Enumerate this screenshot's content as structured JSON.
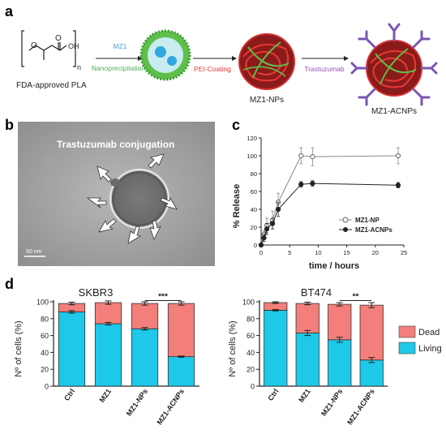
{
  "panels": {
    "a": {
      "letter": "a",
      "pla_label": "FDA-approved PLA",
      "step1_top": "MZ1",
      "step1_bottom": "Nanoprecipitation",
      "step2": "PEI-Coating",
      "np_label": "MZ1-NPs",
      "step3": "Trastuzumab",
      "acnp_label": "MZ1-ACNPs",
      "colors": {
        "mz1": "#3aa6d8",
        "nanoprecip": "#4caf50",
        "pei": "#e53935",
        "trastuzumab": "#9c4fb8",
        "np_red": "#c62828",
        "np_green": "#5fbf4a",
        "antibody": "#7b55b5"
      }
    },
    "b": {
      "letter": "b",
      "title": "Trastuzumab conjugation",
      "scale_bar": "50 nm"
    },
    "c": {
      "letter": "c"
    },
    "d": {
      "letter": "d"
    }
  },
  "chart_data": [
    {
      "type": "line",
      "panel": "c",
      "xlabel": "time / hours",
      "ylabel": "% Release",
      "xlim": [
        0,
        25
      ],
      "ylim": [
        0,
        120
      ],
      "xticks": [
        0,
        5,
        10,
        15,
        20,
        25
      ],
      "yticks": [
        0,
        20,
        40,
        60,
        80,
        100,
        120
      ],
      "legend_position": "bottom-right",
      "series": [
        {
          "name": "MZ1-NP",
          "marker": "open-circle",
          "color": "#888888",
          "x": [
            0,
            0.5,
            1,
            2,
            3,
            7,
            9,
            24
          ],
          "y": [
            0,
            12,
            22,
            28,
            48,
            100,
            99,
            100
          ],
          "err": [
            0,
            4,
            8,
            10,
            10,
            9,
            10,
            9
          ]
        },
        {
          "name": "MZ1-ACNPs",
          "marker": "filled-circle",
          "color": "#222222",
          "x": [
            0,
            0.5,
            1,
            2,
            3,
            7,
            9,
            24
          ],
          "y": [
            0,
            8,
            18,
            24,
            40,
            68,
            69,
            67
          ],
          "err": [
            0,
            4,
            6,
            6,
            8,
            3,
            3,
            3
          ]
        }
      ]
    },
    {
      "type": "bar",
      "stacked": true,
      "panel": "d-left",
      "title": "SKBR3",
      "ylabel": "Nº of cells (%)",
      "ylim": [
        0,
        100
      ],
      "yticks": [
        0,
        20,
        40,
        60,
        80,
        100
      ],
      "categories": [
        "Ctrl",
        "MZ1",
        "MZ1-NPs",
        "MZ1-ACNPs"
      ],
      "series": [
        {
          "name": "Living",
          "color": "#1ec8e8",
          "values": [
            88,
            74,
            68,
            35
          ],
          "err": [
            1.5,
            1.5,
            1.5,
            0.8
          ]
        },
        {
          "name": "Dead",
          "color": "#f27f7a",
          "values": [
            10,
            25,
            30,
            63
          ],
          "err": [
            1.5,
            2,
            2,
            2
          ]
        }
      ],
      "significance": {
        "label": "***",
        "between": [
          "MZ1-NPs",
          "MZ1-ACNPs"
        ]
      }
    },
    {
      "type": "bar",
      "stacked": true,
      "panel": "d-right",
      "title": "BT474",
      "ylabel": "Nº of cells (%)",
      "ylim": [
        0,
        100
      ],
      "yticks": [
        0,
        20,
        40,
        60,
        80,
        100
      ],
      "categories": [
        "Ctrl",
        "MZ1",
        "MZ1-NPs",
        "MZ1-ACNPs"
      ],
      "series": [
        {
          "name": "Living",
          "color": "#1ec8e8",
          "values": [
            90,
            63,
            55,
            31
          ],
          "err": [
            0.8,
            3,
            3,
            3
          ]
        },
        {
          "name": "Dead",
          "color": "#f27f7a",
          "values": [
            9,
            35,
            42,
            65
          ],
          "err": [
            1,
            1.5,
            2,
            3
          ]
        }
      ],
      "significance": {
        "label": "**",
        "between": [
          "MZ1-NPs",
          "MZ1-ACNPs"
        ]
      }
    }
  ],
  "legend_d": {
    "items": [
      {
        "label": "Dead",
        "color": "#f27f7a"
      },
      {
        "label": "Living",
        "color": "#1ec8e8"
      }
    ]
  }
}
